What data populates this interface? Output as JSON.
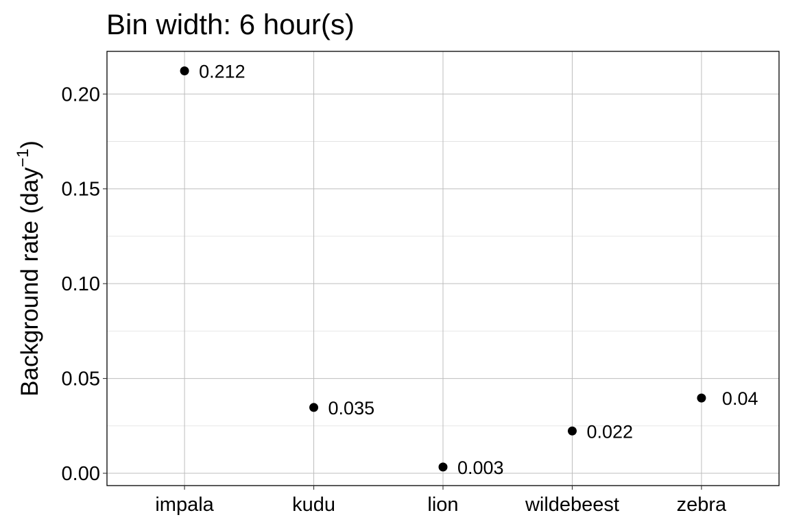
{
  "chart_data": {
    "type": "scatter",
    "title": "Bin width: 6 hour(s)",
    "xlabel": "",
    "ylabel_main": "Background rate (day",
    "ylabel_sup": "−1",
    "ylabel_close": ")",
    "categories": [
      "impala",
      "kudu",
      "lion",
      "wildebeest",
      "zebra"
    ],
    "values": [
      0.2122,
      0.0347,
      0.0033,
      0.0223,
      0.0397
    ],
    "data_labels": [
      "0.212",
      "0.035",
      "0.003",
      "0.022",
      "0.04"
    ],
    "ylim": [
      -0.0065,
      0.2225
    ],
    "yticks": [
      0,
      0.05,
      0.1,
      0.15,
      0.2
    ],
    "ytick_labels": [
      "0.00",
      "0.05",
      "0.10",
      "0.15",
      "0.20"
    ],
    "grid": true,
    "point_color": "#000000",
    "major_grid_color": "#bdbdbd",
    "minor_grid_color": "#e3e3e3"
  }
}
